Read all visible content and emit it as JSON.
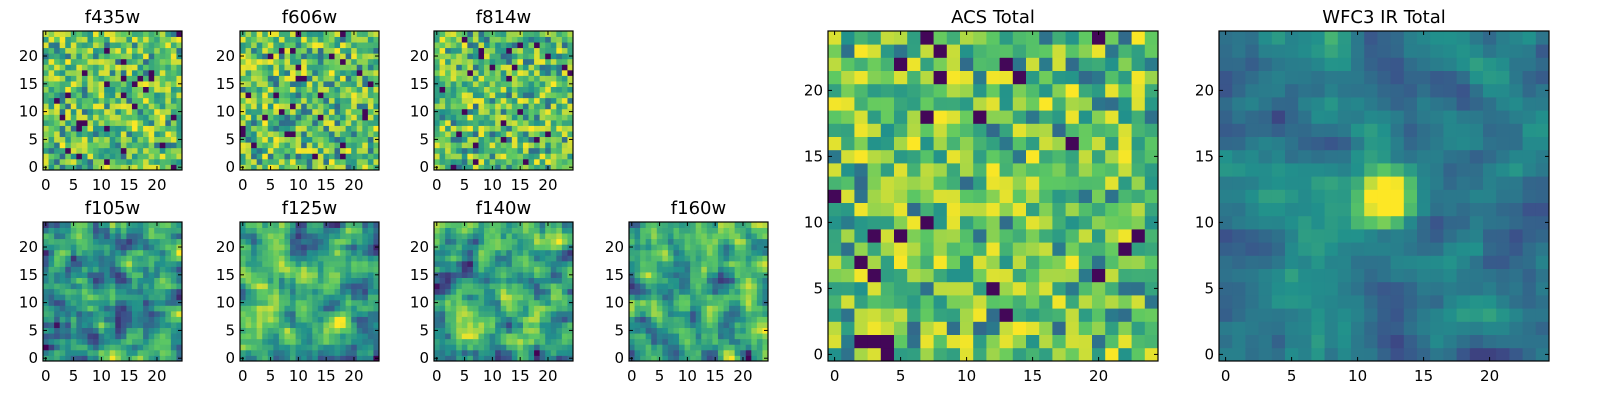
{
  "figure": {
    "colormap": [
      "#440154",
      "#3b528b",
      "#21918c",
      "#5ec962",
      "#fde725"
    ]
  },
  "chart_data": [
    {
      "type": "heatmap",
      "title": "f435w",
      "grid": [
        25,
        25
      ],
      "xlim": [
        -0.5,
        24.5
      ],
      "ylim": [
        -0.5,
        24.5
      ],
      "xticks": [
        0,
        5,
        10,
        15,
        20
      ],
      "yticks": [
        0,
        5,
        10,
        15,
        20
      ],
      "pattern": "noise",
      "seed": 11
    },
    {
      "type": "heatmap",
      "title": "f606w",
      "grid": [
        25,
        25
      ],
      "xlim": [
        -0.5,
        24.5
      ],
      "ylim": [
        -0.5,
        24.5
      ],
      "xticks": [
        0,
        5,
        10,
        15,
        20
      ],
      "yticks": [
        0,
        5,
        10,
        15,
        20
      ],
      "pattern": "noise",
      "seed": 23
    },
    {
      "type": "heatmap",
      "title": "f814w",
      "grid": [
        25,
        25
      ],
      "xlim": [
        -0.5,
        24.5
      ],
      "ylim": [
        -0.5,
        24.5
      ],
      "xticks": [
        0,
        5,
        10,
        15,
        20
      ],
      "yticks": [
        0,
        5,
        10,
        15,
        20
      ],
      "pattern": "noise",
      "seed": 37
    },
    {
      "type": "heatmap",
      "title": "f105w",
      "grid": [
        25,
        25
      ],
      "xlim": [
        -0.5,
        24.5
      ],
      "ylim": [
        -0.5,
        24.5
      ],
      "xticks": [
        0,
        5,
        10,
        15,
        20
      ],
      "yticks": [
        0,
        5,
        10,
        15,
        20
      ],
      "pattern": "smooth",
      "seed": 41
    },
    {
      "type": "heatmap",
      "title": "f125w",
      "grid": [
        25,
        25
      ],
      "xlim": [
        -0.5,
        24.5
      ],
      "ylim": [
        -0.5,
        24.5
      ],
      "xticks": [
        0,
        5,
        10,
        15,
        20
      ],
      "yticks": [
        0,
        5,
        10,
        15,
        20
      ],
      "pattern": "smooth",
      "seed": 53
    },
    {
      "type": "heatmap",
      "title": "f140w",
      "grid": [
        25,
        25
      ],
      "xlim": [
        -0.5,
        24.5
      ],
      "ylim": [
        -0.5,
        24.5
      ],
      "xticks": [
        0,
        5,
        10,
        15,
        20
      ],
      "yticks": [
        0,
        5,
        10,
        15,
        20
      ],
      "pattern": "smooth",
      "seed": 67
    },
    {
      "type": "heatmap",
      "title": "f160w",
      "grid": [
        25,
        25
      ],
      "xlim": [
        -0.5,
        24.5
      ],
      "ylim": [
        -0.5,
        24.5
      ],
      "xticks": [
        0,
        5,
        10,
        15,
        20
      ],
      "yticks": [
        0,
        5,
        10,
        15,
        20
      ],
      "pattern": "smooth",
      "seed": 79
    },
    {
      "type": "heatmap",
      "title": "ACS Total",
      "grid": [
        25,
        25
      ],
      "xlim": [
        -0.5,
        24.5
      ],
      "ylim": [
        -0.5,
        24.5
      ],
      "xticks": [
        0,
        5,
        10,
        15,
        20
      ],
      "yticks": [
        0,
        5,
        10,
        15,
        20
      ],
      "pattern": "noise",
      "seed": 97
    },
    {
      "type": "heatmap",
      "title": "WFC3 IR Total",
      "grid": [
        25,
        25
      ],
      "xlim": [
        -0.5,
        24.5
      ],
      "ylim": [
        -0.5,
        24.5
      ],
      "xticks": [
        0,
        5,
        10,
        15,
        20
      ],
      "yticks": [
        0,
        5,
        10,
        15,
        20
      ],
      "pattern": "source",
      "source_center": [
        12,
        12
      ],
      "seed": 101
    }
  ]
}
